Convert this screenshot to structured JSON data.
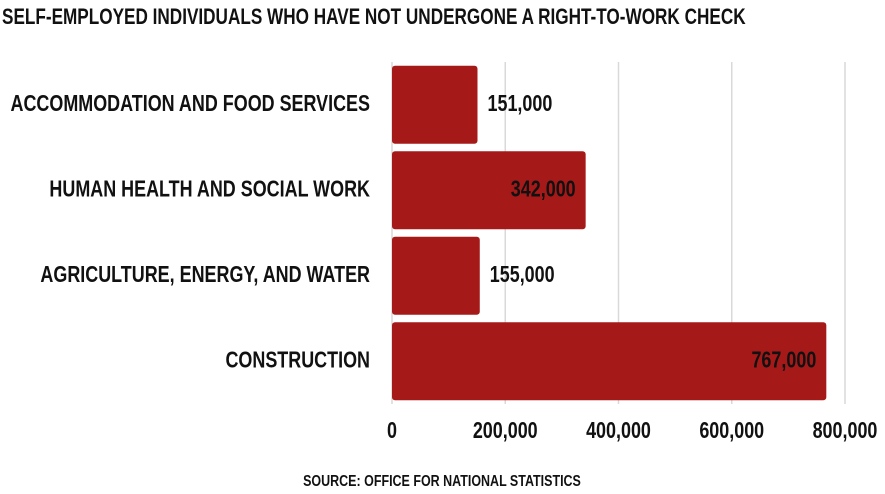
{
  "chart_data": {
    "type": "barh",
    "title": "SELF-EMPLOYED INDIVIDUALS WHO HAVE NOT UNDERGONE A RIGHT-TO-WORK CHECK",
    "source": "SOURCE: OFFICE FOR NATIONAL STATISTICS",
    "categories": [
      "ACCOMMODATION AND FOOD SERVICES",
      "HUMAN HEALTH AND SOCIAL WORK",
      "AGRICULTURE, ENERGY, AND WATER",
      "CONSTRUCTION"
    ],
    "values": [
      151000,
      342000,
      155000,
      767000
    ],
    "value_labels": [
      "151,000",
      "342,000",
      "155,000",
      "767,000"
    ],
    "color": "#a51919",
    "xlim": [
      0,
      800000
    ],
    "xticks": [
      0,
      {
        "value": 200000,
        "label": "200,000"
      },
      {
        "value": 400000,
        "label": "400,000"
      },
      {
        "value": 600000,
        "label": "600,000"
      },
      {
        "value": 800000,
        "label": "800,000"
      }
    ],
    "grid": true
  }
}
